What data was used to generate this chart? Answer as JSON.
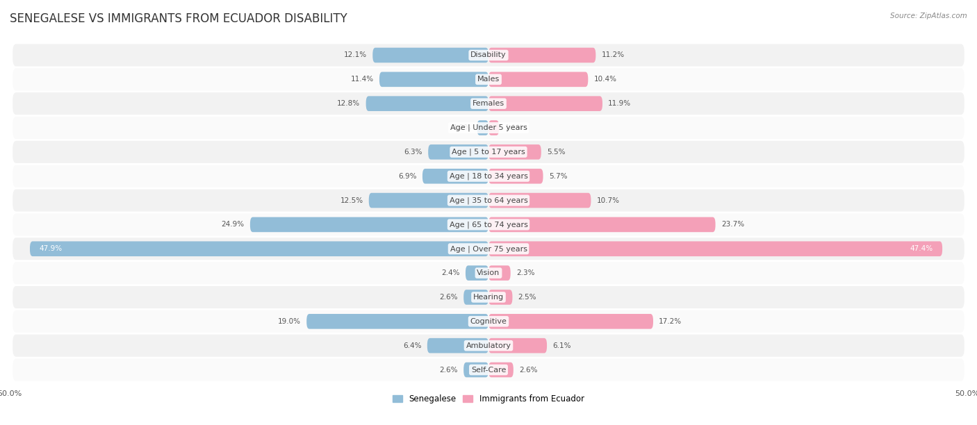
{
  "title": "SENEGALESE VS IMMIGRANTS FROM ECUADOR DISABILITY",
  "source": "Source: ZipAtlas.com",
  "categories": [
    "Disability",
    "Males",
    "Females",
    "Age | Under 5 years",
    "Age | 5 to 17 years",
    "Age | 18 to 34 years",
    "Age | 35 to 64 years",
    "Age | 65 to 74 years",
    "Age | Over 75 years",
    "Vision",
    "Hearing",
    "Cognitive",
    "Ambulatory",
    "Self-Care"
  ],
  "senegalese": [
    12.1,
    11.4,
    12.8,
    1.2,
    6.3,
    6.9,
    12.5,
    24.9,
    47.9,
    2.4,
    2.6,
    19.0,
    6.4,
    2.6
  ],
  "ecuador": [
    11.2,
    10.4,
    11.9,
    1.1,
    5.5,
    5.7,
    10.7,
    23.7,
    47.4,
    2.3,
    2.5,
    17.2,
    6.1,
    2.6
  ],
  "senegalese_color": "#92bdd8",
  "ecuador_color": "#f4a0b8",
  "senegalese_dark": "#6fa8cc",
  "ecuador_dark": "#ef7fa0",
  "background_color": "#ffffff",
  "row_bg_odd": "#f2f2f2",
  "row_bg_even": "#fafafa",
  "axis_limit": 50.0,
  "legend_senegalese": "Senegalese",
  "legend_ecuador": "Immigrants from Ecuador",
  "title_fontsize": 12,
  "label_fontsize": 8,
  "value_fontsize": 7.5,
  "bar_height": 0.62
}
